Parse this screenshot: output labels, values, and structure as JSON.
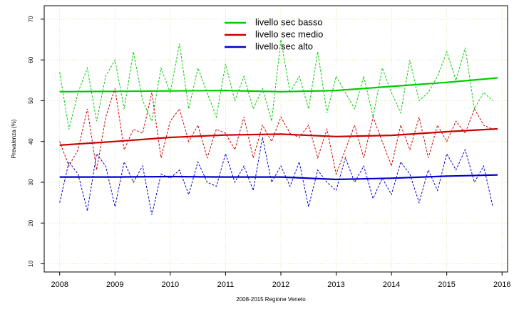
{
  "chart_data": {
    "type": "line",
    "y_label": "Prevalenza (%)",
    "x_label": "2008-2015 Regione Veneto",
    "xlim": [
      2007.72,
      2016.1
    ],
    "ylim": [
      8,
      73.3
    ],
    "xticks": [
      2008,
      2009,
      2010,
      2011,
      2012,
      2013,
      2014,
      2015,
      2016
    ],
    "yticks": [
      10,
      20,
      30,
      40,
      50,
      60,
      70
    ],
    "grid": true,
    "legend": "top",
    "x": [
      2008,
      2008.167,
      2008.333,
      2008.5,
      2008.667,
      2008.833,
      2009,
      2009.167,
      2009.333,
      2009.5,
      2009.667,
      2009.833,
      2010,
      2010.167,
      2010.333,
      2010.5,
      2010.667,
      2010.833,
      2011,
      2011.167,
      2011.333,
      2011.5,
      2011.667,
      2011.833,
      2012,
      2012.167,
      2012.333,
      2012.5,
      2012.667,
      2012.833,
      2013,
      2013.167,
      2013.333,
      2013.5,
      2013.667,
      2013.833,
      2014,
      2014.167,
      2014.333,
      2014.5,
      2014.667,
      2014.833,
      2015,
      2015.167,
      2015.333,
      2015.5,
      2015.667,
      2015.833
    ],
    "trend_x": [
      2008,
      2009,
      2010,
      2011,
      2012,
      2013,
      2014,
      2015,
      2015.92
    ],
    "series": [
      {
        "name": "livello sec basso",
        "color": "#00cc00",
        "values": [
          57,
          43,
          52,
          58,
          45,
          56,
          60,
          48,
          62,
          50,
          45,
          58,
          52,
          64,
          48,
          58,
          52,
          46,
          59,
          50,
          56,
          48,
          53,
          45,
          65,
          52,
          56,
          48,
          62,
          47,
          56,
          52,
          48,
          56,
          46,
          58,
          52,
          47,
          60,
          50,
          52,
          56,
          62,
          55,
          63,
          48,
          52,
          50
        ],
        "trend": [
          52.2,
          52.3,
          52.4,
          52.5,
          52.2,
          52.5,
          53.5,
          54.5,
          55.6
        ]
      },
      {
        "name": "livello sec medio",
        "color": "#cc0000",
        "values": [
          40,
          34,
          38,
          48,
          33,
          46,
          53,
          38,
          43,
          42,
          52,
          36,
          45,
          48,
          40,
          44,
          36,
          43,
          42,
          38,
          46,
          36,
          44,
          40,
          46,
          42,
          41,
          44,
          36,
          43,
          32,
          38,
          44,
          36,
          46,
          40,
          34,
          44,
          38,
          46,
          36,
          44,
          40,
          45,
          42,
          48,
          44,
          43
        ],
        "trend": [
          39.1,
          40,
          41,
          41.6,
          41.8,
          41.2,
          41.5,
          42.4,
          43.1
        ]
      },
      {
        "name": "livello sec alto",
        "color": "#0000cc",
        "values": [
          25,
          35,
          32,
          23,
          37,
          34,
          24,
          35,
          30,
          34,
          22,
          32,
          31,
          33,
          27,
          35,
          30,
          29,
          37,
          30,
          34,
          28,
          41,
          30,
          34,
          29,
          35,
          24,
          33,
          30,
          28,
          36,
          30,
          34,
          26,
          31,
          27,
          35,
          32,
          25,
          33,
          28,
          37,
          33,
          38,
          30,
          34,
          24
        ],
        "trend": [
          31.3,
          31.3,
          31.4,
          31.3,
          31.3,
          30.7,
          31,
          31.5,
          31.8
        ]
      }
    ]
  }
}
